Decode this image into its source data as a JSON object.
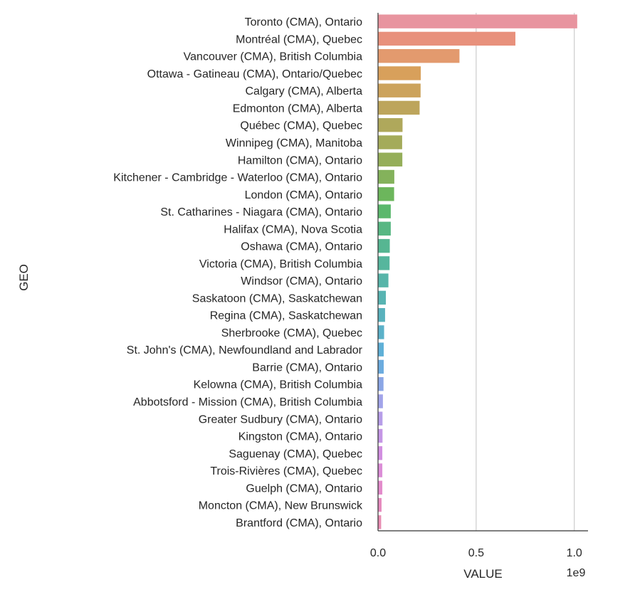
{
  "chart_data": {
    "type": "bar",
    "orientation": "horizontal",
    "xlabel": "VALUE",
    "ylabel": "GEO",
    "x_offset_label": "1e9",
    "xlim": [
      0,
      1.07
    ],
    "xticks": [
      0.0,
      0.5,
      1.0
    ],
    "xtick_labels": [
      "0.0",
      "0.5",
      "1.0"
    ],
    "grid": "vertical",
    "categories": [
      "Toronto (CMA), Ontario",
      "Montréal (CMA), Quebec",
      "Vancouver (CMA), British Columbia",
      "Ottawa - Gatineau (CMA), Ontario/Quebec",
      "Calgary (CMA), Alberta",
      "Edmonton (CMA), Alberta",
      "Québec (CMA), Quebec",
      "Winnipeg (CMA), Manitoba",
      "Hamilton (CMA), Ontario",
      "Kitchener - Cambridge - Waterloo (CMA), Ontario",
      "London (CMA), Ontario",
      "St. Catharines - Niagara (CMA), Ontario",
      "Halifax (CMA), Nova Scotia",
      "Oshawa (CMA), Ontario",
      "Victoria (CMA), British Columbia",
      "Windsor (CMA), Ontario",
      "Saskatoon (CMA), Saskatchewan",
      "Regina (CMA), Saskatchewan",
      "Sherbrooke (CMA), Quebec",
      "St. John's (CMA), Newfoundland and Labrador",
      "Barrie (CMA), Ontario",
      "Kelowna (CMA), British Columbia",
      "Abbotsford - Mission (CMA), British Columbia",
      "Greater Sudbury (CMA), Ontario",
      "Kingston (CMA), Ontario",
      "Saguenay (CMA), Quebec",
      "Trois-Rivières (CMA), Quebec",
      "Guelph (CMA), Ontario",
      "Moncton (CMA), New Brunswick",
      "Brantford (CMA), Ontario"
    ],
    "values": [
      1.015,
      0.7,
      0.415,
      0.218,
      0.217,
      0.212,
      0.125,
      0.123,
      0.124,
      0.083,
      0.082,
      0.065,
      0.065,
      0.06,
      0.059,
      0.053,
      0.04,
      0.036,
      0.031,
      0.029,
      0.029,
      0.028,
      0.025,
      0.023,
      0.023,
      0.022,
      0.022,
      0.022,
      0.018,
      0.016
    ],
    "colors": [
      "#e8949f",
      "#e8917c",
      "#e39a6e",
      "#d8a05b",
      "#cca35c",
      "#bda55c",
      "#afa85b",
      "#a4ab5a",
      "#95ae59",
      "#84b25b",
      "#6cb65c",
      "#5bb86c",
      "#57b783",
      "#56b692",
      "#56b69d",
      "#57b5a9",
      "#58b4b2",
      "#59b2bd",
      "#5bb1c9",
      "#5fb0d7",
      "#6cacdf",
      "#8ba6e6",
      "#a2a4ea",
      "#b79ee9",
      "#c597e6",
      "#d28fe1",
      "#dc8ed8",
      "#e38ccc",
      "#e78bbf",
      "#e98db3"
    ]
  }
}
